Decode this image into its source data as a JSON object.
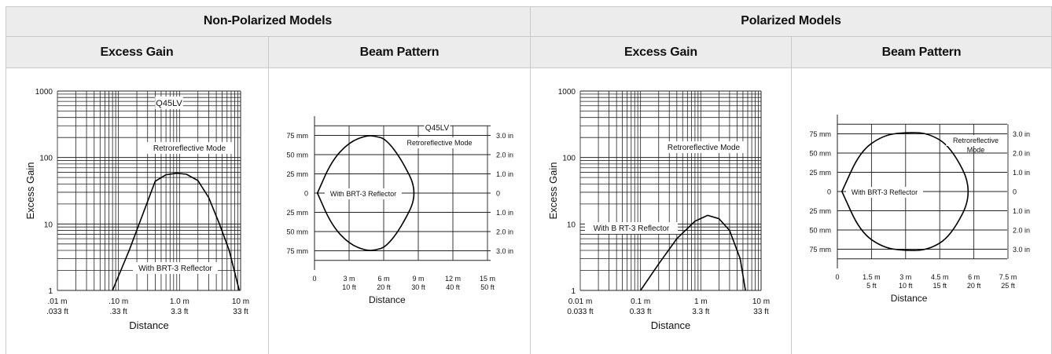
{
  "headers": {
    "non_polarized": "Non-Polarized Models",
    "polarized": "Polarized Models",
    "excess_gain": "Excess Gain",
    "beam_pattern": "Beam Pattern"
  },
  "chart_data": [
    {
      "id": "np-gain",
      "type": "line",
      "xscale": "log",
      "yscale": "log",
      "xlim_m": [
        0.01,
        10
      ],
      "ylim": [
        1,
        1000
      ],
      "ylabel": "Excess Gain",
      "xlabel": "Distance",
      "yticks": [
        "1000",
        "100",
        "10",
        "1"
      ],
      "xticks_m": [
        ".01 m",
        ".10 m",
        "1.0 m",
        "10 m"
      ],
      "xticks_ft": [
        ".033 ft",
        ".33 ft",
        "3.3 ft",
        "33 ft"
      ],
      "model_label": "Q45LV",
      "mode_label": "Retroreflective Mode",
      "reflector_label": "With BRT-3 Reflector",
      "series": [
        {
          "x": [
            0.08,
            0.15,
            0.25,
            0.4,
            0.6,
            0.9,
            1.3,
            2,
            3,
            4.5,
            6.5,
            9.5
          ],
          "y": [
            1,
            4,
            14,
            44,
            55,
            58,
            56,
            45,
            25,
            10,
            4,
            1
          ]
        }
      ]
    },
    {
      "id": "np-beam",
      "type": "line",
      "xlim_m": [
        0,
        15
      ],
      "ylim_mm": [
        -100,
        100
      ],
      "xlabel": "Distance",
      "yticks_left": [
        "75 mm",
        "50 mm",
        "25 mm",
        "0",
        "25 mm",
        "50 mm",
        "75 mm"
      ],
      "yticks_right": [
        "3.0 in",
        "2.0 in",
        "1.0 in",
        "0",
        "1.0 in",
        "2.0 in",
        "3.0 in"
      ],
      "xticks_m": [
        "0",
        "3 m",
        "6 m",
        "9 m",
        "12 m",
        "15 m"
      ],
      "xticks_ft": [
        "",
        "10 ft",
        "20 ft",
        "30 ft",
        "40 ft",
        "50 ft"
      ],
      "model_label": "Q45LV",
      "mode_label": "Retroreflective Mode",
      "reflector_label": "With BRT-3 Reflector",
      "series": [
        {
          "x": [
            0.25,
            1.5,
            3,
            4.5,
            5.3,
            6.2,
            7.5,
            9.0
          ],
          "y": [
            0,
            42,
            66,
            75,
            74,
            70,
            45,
            0
          ]
        }
      ]
    },
    {
      "id": "p-gain",
      "type": "line",
      "xscale": "log",
      "yscale": "log",
      "xlim_m": [
        0.01,
        10
      ],
      "ylim": [
        1,
        1000
      ],
      "ylabel": "Excess Gain",
      "xlabel": "Distance",
      "yticks": [
        "1000",
        "100",
        "10",
        "1"
      ],
      "xticks_m": [
        "0.01 m",
        "0.1 m",
        "1 m",
        "10 m"
      ],
      "xticks_ft": [
        "0.033 ft",
        "0.33 ft",
        "3.3 ft",
        "33 ft"
      ],
      "mode_label": "Retroreflective Mode",
      "reflector_label": "With B  RT-3 Reflector",
      "series": [
        {
          "x": [
            0.1,
            0.2,
            0.4,
            0.8,
            1.3,
            2,
            3,
            4.5,
            5.5
          ],
          "y": [
            1,
            2.5,
            6,
            11,
            13.5,
            12,
            8,
            3,
            1
          ]
        }
      ]
    },
    {
      "id": "p-beam",
      "type": "line",
      "xlim_m": [
        0,
        7.5
      ],
      "ylim_mm": [
        -100,
        100
      ],
      "xlabel": "Distance",
      "yticks_left": [
        "75 mm",
        "50 mm",
        "25 mm",
        "0",
        "25 mm",
        "50 mm",
        "75 mm"
      ],
      "yticks_right": [
        "3.0 in",
        "2.0 in",
        "1.0 in",
        "0",
        "1.0 in",
        "2.0 in",
        "3.0 in"
      ],
      "xticks_m": [
        "0",
        "1.5 m",
        "3 m",
        "4.5 m",
        "6 m",
        "7.5 m"
      ],
      "xticks_ft": [
        "",
        "5 ft",
        "10 ft",
        "15 ft",
        "20 ft",
        "25 ft"
      ],
      "mode_label": "Retroreflective Mode",
      "reflector_label": "With BRT-3 Reflector",
      "series": [
        {
          "x": [
            0.2,
            1,
            2,
            3,
            4,
            5,
            6
          ],
          "y": [
            0,
            52,
            73,
            77,
            76,
            58,
            0
          ]
        }
      ]
    }
  ]
}
